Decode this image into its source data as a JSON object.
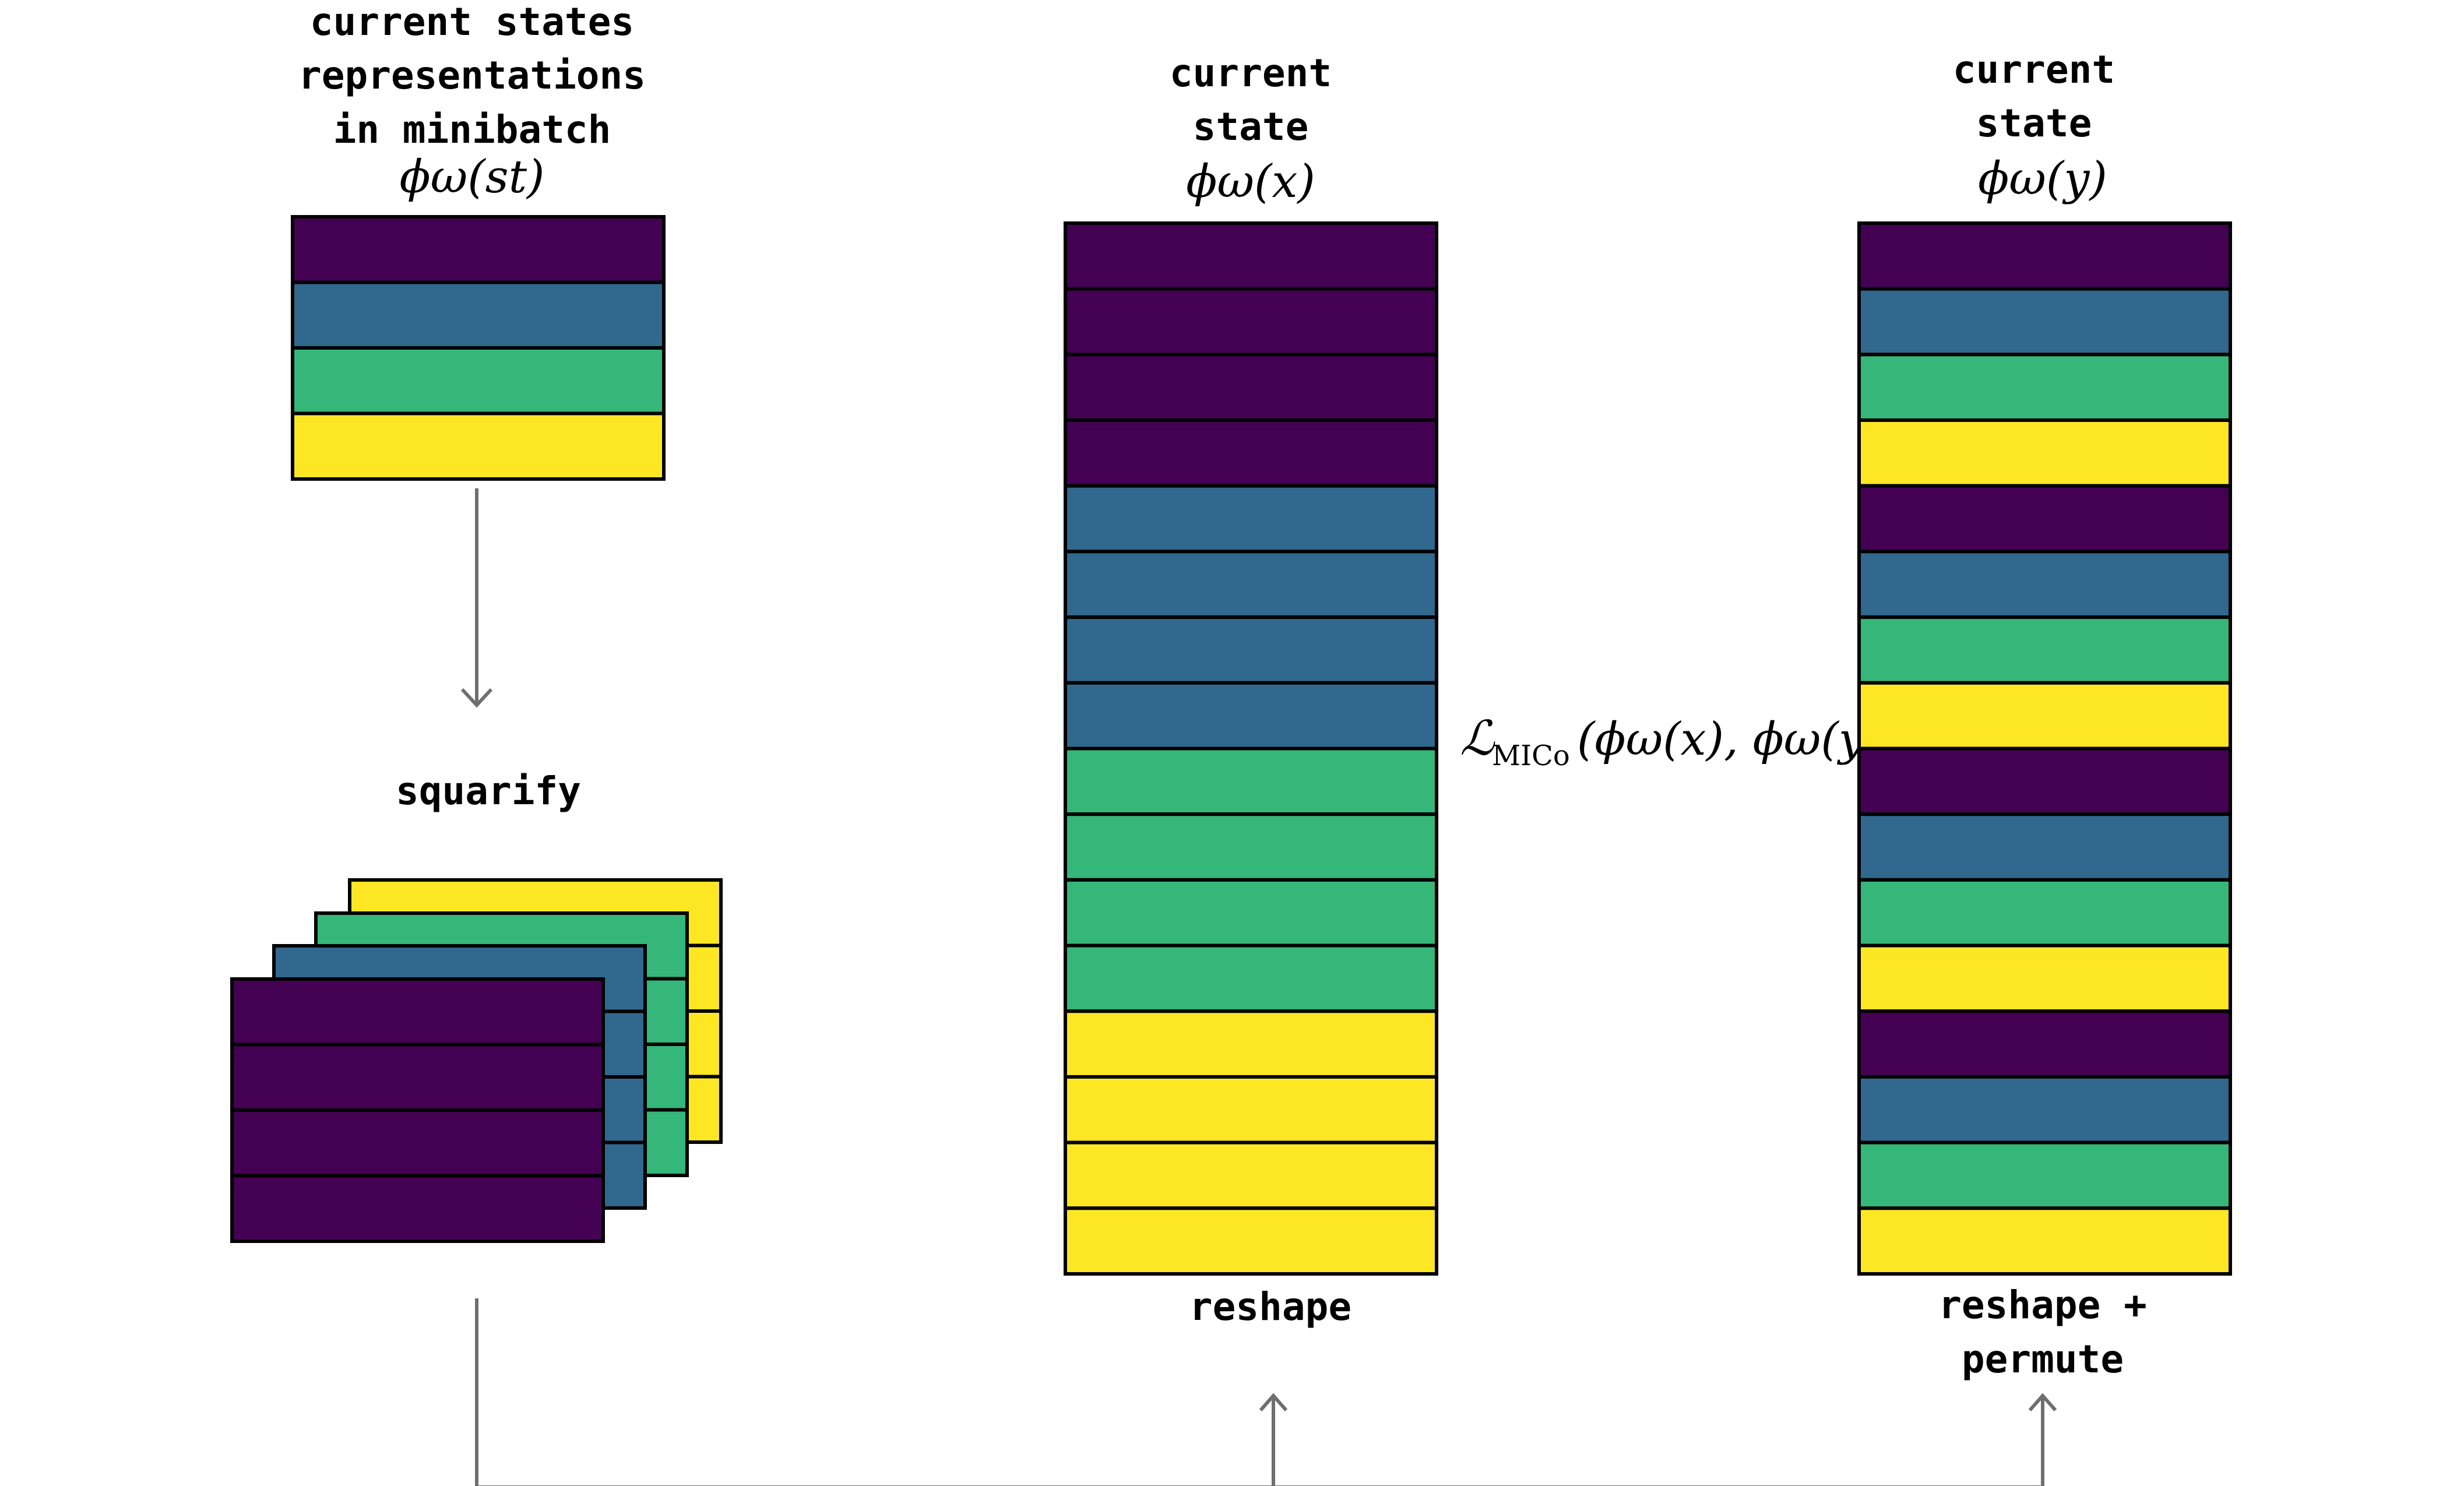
{
  "palette": {
    "purple": "#440154",
    "blue": "#31688e",
    "green": "#35b779",
    "yellow": "#fde725"
  },
  "minibatch": {
    "label_lines": [
      "current states",
      "representations",
      "in minibatch"
    ],
    "math": "ϕω(st)",
    "rows": [
      "purple",
      "blue",
      "green",
      "yellow"
    ]
  },
  "squarify": {
    "label": "squarify",
    "stack_colors": [
      "yellow",
      "green",
      "blue",
      "purple"
    ]
  },
  "state_x": {
    "label_lines": [
      "current",
      "state"
    ],
    "math": "ϕω(x)",
    "rows": [
      "purple",
      "purple",
      "purple",
      "purple",
      "blue",
      "blue",
      "blue",
      "blue",
      "green",
      "green",
      "green",
      "green",
      "yellow",
      "yellow",
      "yellow",
      "yellow"
    ],
    "caption_lines": [
      "reshape"
    ]
  },
  "state_y": {
    "label_lines": [
      "current",
      "state"
    ],
    "math": "ϕω(y)",
    "rows": [
      "purple",
      "blue",
      "green",
      "yellow",
      "purple",
      "blue",
      "green",
      "yellow",
      "purple",
      "blue",
      "green",
      "yellow",
      "purple",
      "blue",
      "green",
      "yellow"
    ],
    "caption_lines": [
      "reshape +",
      "permute"
    ]
  },
  "loss": {
    "symbol": "ℒ",
    "subscript": "MICo",
    "args": "(ϕω(x), ϕω(y))"
  }
}
